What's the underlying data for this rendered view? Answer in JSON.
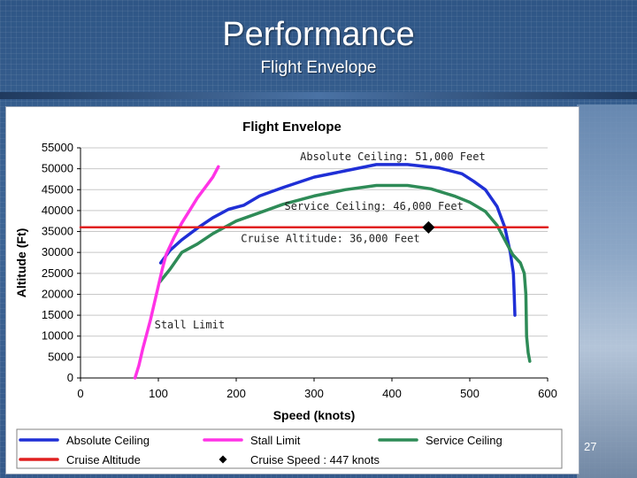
{
  "slide": {
    "title": "Performance",
    "subtitle": "Flight Envelope",
    "page_number": "27"
  },
  "colors": {
    "absolute_ceiling": "#1f2fd6",
    "stall_limit": "#ff33e6",
    "service_ceiling": "#2e8b57",
    "cruise_altitude": "#e02020",
    "cruise_speed": "#000000"
  },
  "chart_data": {
    "type": "line",
    "title": "Flight Envelope",
    "xlabel": "Speed (knots)",
    "ylabel": "Altitude (Ft)",
    "xlim": [
      0,
      600
    ],
    "ylim": [
      0,
      55000
    ],
    "x_ticks": [
      "0",
      "100",
      "200",
      "300",
      "400",
      "500",
      "600"
    ],
    "y_ticks": [
      "0",
      "5000",
      "10000",
      "15000",
      "20000",
      "25000",
      "30000",
      "35000",
      "40000",
      "45000",
      "50000",
      "55000"
    ],
    "grid": "horizontal",
    "legend_position": "bottom",
    "series": [
      {
        "name": "Absolute Ceiling",
        "x": [
          103,
          115,
          130,
          150,
          170,
          190,
          210,
          230,
          260,
          300,
          340,
          380,
          420,
          460,
          490,
          505,
          520,
          535,
          545,
          552,
          556,
          557,
          558
        ],
        "y": [
          27500,
          30500,
          33000,
          35800,
          38300,
          40300,
          41300,
          43500,
          45500,
          48000,
          49500,
          51000,
          51000,
          50200,
          48800,
          47000,
          45000,
          41000,
          36000,
          30000,
          25000,
          20000,
          15000
        ]
      },
      {
        "name": "Service Ceiling",
        "x": [
          102,
          115,
          130,
          150,
          170,
          200,
          230,
          260,
          300,
          340,
          380,
          420,
          450,
          480,
          500,
          520,
          535,
          545,
          555,
          565,
          570,
          572,
          573,
          574,
          575,
          577
        ],
        "y": [
          23000,
          26000,
          30000,
          32000,
          34500,
          37500,
          39500,
          41500,
          43500,
          45000,
          46000,
          46000,
          45200,
          43500,
          42000,
          39800,
          36500,
          33000,
          29500,
          27500,
          25000,
          20000,
          10000,
          8000,
          6000,
          4000
        ]
      },
      {
        "name": "Stall Limit",
        "x": [
          70,
          75,
          80,
          85,
          90,
          95,
          100,
          105,
          110,
          120,
          130,
          140,
          150,
          160,
          170,
          177
        ],
        "y": [
          0,
          3000,
          7000,
          10500,
          14000,
          18000,
          22000,
          26000,
          29500,
          33500,
          37000,
          40000,
          43000,
          45500,
          48000,
          50500
        ]
      },
      {
        "name": "Cruise Altitude",
        "x": [
          0,
          600
        ],
        "y": [
          36000,
          36000
        ]
      }
    ],
    "points": [
      {
        "name": "Cruise Speed : 447 knots",
        "x": 447,
        "y": 36000
      }
    ],
    "annotations": [
      {
        "text": "Absolute Ceiling: 51,000 Feet",
        "x": 282,
        "y": 52000
      },
      {
        "text": "Service Ceiling: 46,000 Feet",
        "x": 262,
        "y": 40200
      },
      {
        "text": "Cruise Altitude: 36,000 Feet",
        "x": 206,
        "y": 32500
      },
      {
        "text": "Stall Limit",
        "x": 95,
        "y": 11800
      }
    ],
    "legend": [
      {
        "label": "Absolute Ceiling",
        "kind": "line",
        "color_key": "absolute_ceiling"
      },
      {
        "label": "Stall Limit",
        "kind": "line",
        "color_key": "stall_limit"
      },
      {
        "label": "Service Ceiling",
        "kind": "line",
        "color_key": "service_ceiling"
      },
      {
        "label": "Cruise Altitude",
        "kind": "line",
        "color_key": "cruise_altitude"
      },
      {
        "label": "Cruise Speed : 447 knots",
        "kind": "marker",
        "color_key": "cruise_speed"
      }
    ]
  }
}
